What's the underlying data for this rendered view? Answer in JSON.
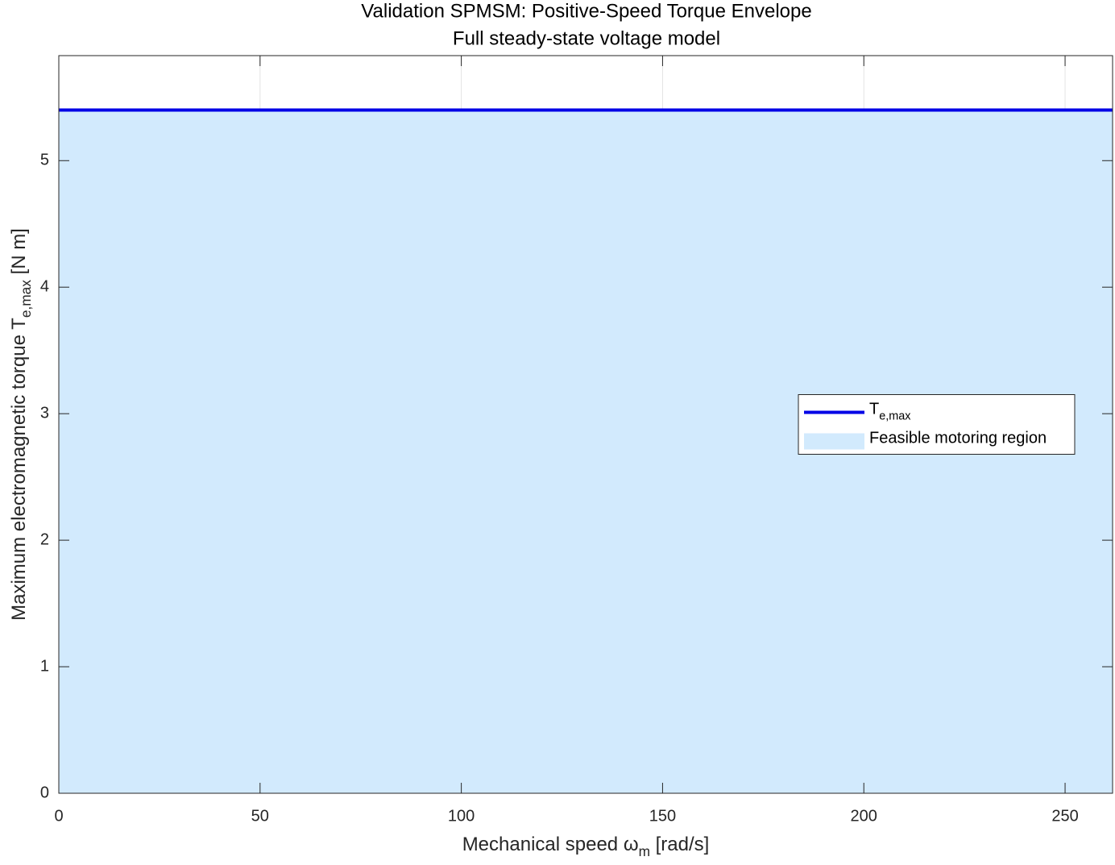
{
  "chart_data": {
    "type": "line",
    "title": "Validation SPMSM: Positive-Speed Torque Envelope",
    "subtitle": "Full steady-state voltage model",
    "xlabel": [
      {
        "text": "Mechanical speed "
      },
      {
        "text": "ω"
      },
      {
        "sub": "m"
      },
      {
        "text": " [rad/s]"
      }
    ],
    "ylabel": [
      {
        "text": "Maximum electromagnetic torque T"
      },
      {
        "sub": "e,max"
      },
      {
        "text": " [N m]"
      }
    ],
    "x": [
      0,
      261.8
    ],
    "series": [
      {
        "name": [
          {
            "text": "Feasible motoring region"
          }
        ],
        "type": "area",
        "color": "#d2eafd",
        "values": [
          5.4,
          5.4
        ]
      },
      {
        "name": [
          {
            "text": "T"
          },
          {
            "sub": "e,max"
          }
        ],
        "type": "line",
        "color": "#0000e6",
        "values": [
          5.4,
          5.4
        ]
      }
    ],
    "xlim": [
      0,
      261.8
    ],
    "ylim": [
      0,
      5.83
    ],
    "xticks": [
      0,
      50,
      100,
      150,
      200,
      250
    ],
    "yticks": [
      0,
      1,
      2,
      3,
      4,
      5
    ],
    "grid": true,
    "legend": "east"
  }
}
